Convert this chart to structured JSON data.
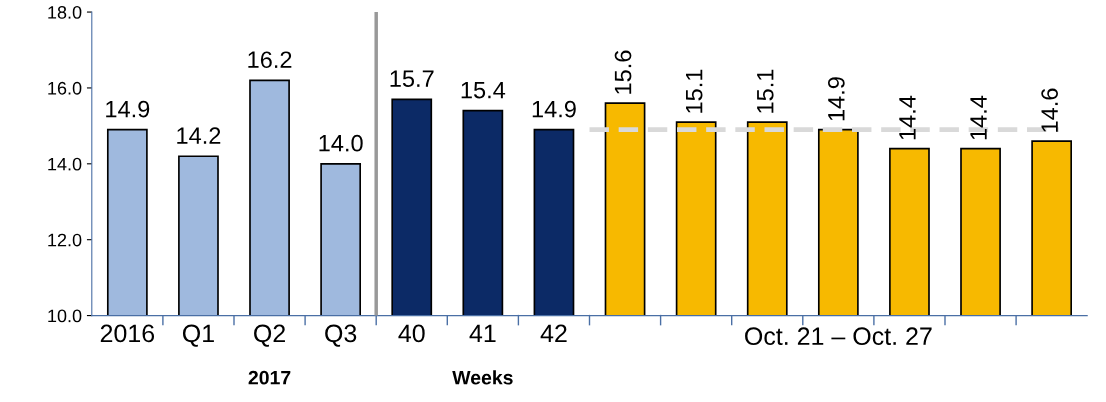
{
  "chart_data": {
    "type": "bar",
    "categories": [
      "2016",
      "Q1",
      "Q2",
      "Q3",
      "40",
      "41",
      "42",
      null,
      null,
      null,
      null,
      null,
      null,
      null
    ],
    "values": [
      14.9,
      14.2,
      16.2,
      14.0,
      15.7,
      15.4,
      14.9,
      15.6,
      15.1,
      15.1,
      14.9,
      14.4,
      14.4,
      14.6
    ],
    "value_labels": [
      "14.9",
      "14.2",
      "16.2",
      "14.0",
      "15.7",
      "15.4",
      "14.9",
      "15.6",
      "15.1",
      "15.1",
      "14.9",
      "14.4",
      "14.4",
      "14.6"
    ],
    "colors": [
      "#9fb9de",
      "#9fb9de",
      "#9fb9de",
      "#9fb9de",
      "#0c2a66",
      "#0c2a66",
      "#0c2a66",
      "#f7b900",
      "#f7b900",
      "#f7b900",
      "#f7b900",
      "#f7b900",
      "#f7b900",
      "#f7b900"
    ],
    "ylim": [
      10,
      18
    ],
    "yticks": [
      {
        "value": 10,
        "label": "10.0"
      },
      {
        "value": 12,
        "label": "12.0"
      },
      {
        "value": 14,
        "label": "14.0"
      },
      {
        "value": 16,
        "label": "16.0"
      },
      {
        "value": 18,
        "label": "18.0"
      }
    ],
    "ref_lines": [
      {
        "axis": "y",
        "value": 14.9,
        "color": "#d9d9d9",
        "line_style": "dashed"
      }
    ],
    "annotations": [
      "2017",
      "Weeks",
      "Oct. 21 – Oct. 27"
    ],
    "grid": false,
    "legend": false
  }
}
